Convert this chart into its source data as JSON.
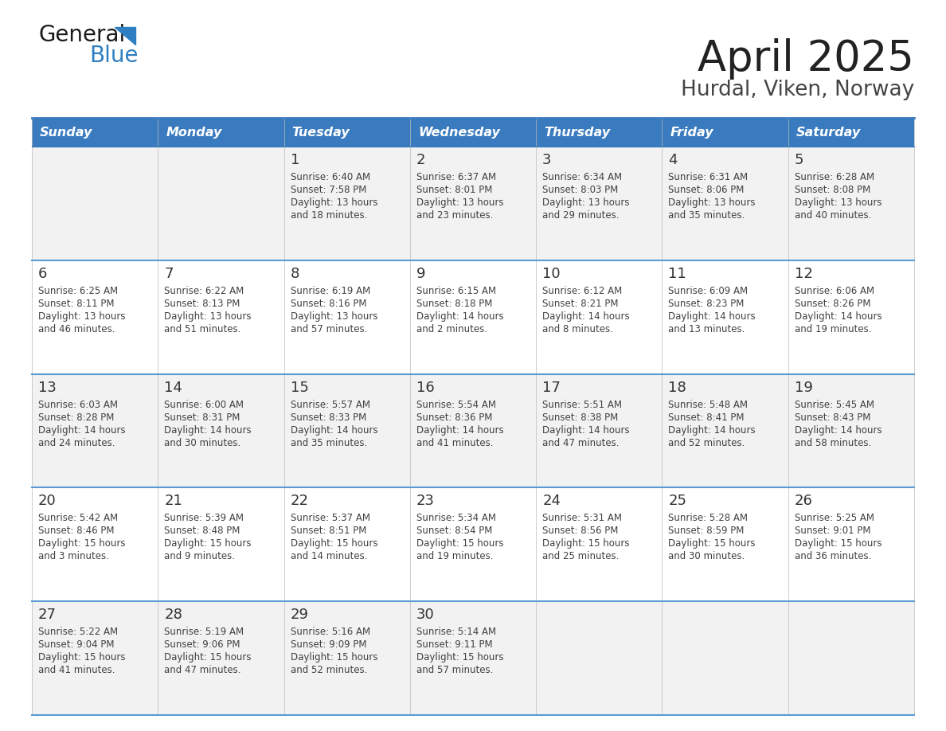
{
  "title": "April 2025",
  "subtitle": "Hurdal, Viken, Norway",
  "header_color": "#3a7bbf",
  "header_text_color": "#ffffff",
  "day_names": [
    "Sunday",
    "Monday",
    "Tuesday",
    "Wednesday",
    "Thursday",
    "Friday",
    "Saturday"
  ],
  "row_even_color": "#f2f2f2",
  "row_odd_color": "#ffffff",
  "border_color": "#3a7bbf",
  "separator_color": "#5b9bd5",
  "text_color": "#404040",
  "day_number_color": "#333333",
  "logo_color1": "#1a1a1a",
  "logo_color2": "#2e7fc1",
  "weeks": [
    [
      {
        "day": null,
        "sunrise": null,
        "sunset": null,
        "daylight": null
      },
      {
        "day": null,
        "sunrise": null,
        "sunset": null,
        "daylight": null
      },
      {
        "day": 1,
        "sunrise": "6:40 AM",
        "sunset": "7:58 PM",
        "daylight": "13 hours\nand 18 minutes."
      },
      {
        "day": 2,
        "sunrise": "6:37 AM",
        "sunset": "8:01 PM",
        "daylight": "13 hours\nand 23 minutes."
      },
      {
        "day": 3,
        "sunrise": "6:34 AM",
        "sunset": "8:03 PM",
        "daylight": "13 hours\nand 29 minutes."
      },
      {
        "day": 4,
        "sunrise": "6:31 AM",
        "sunset": "8:06 PM",
        "daylight": "13 hours\nand 35 minutes."
      },
      {
        "day": 5,
        "sunrise": "6:28 AM",
        "sunset": "8:08 PM",
        "daylight": "13 hours\nand 40 minutes."
      }
    ],
    [
      {
        "day": 6,
        "sunrise": "6:25 AM",
        "sunset": "8:11 PM",
        "daylight": "13 hours\nand 46 minutes."
      },
      {
        "day": 7,
        "sunrise": "6:22 AM",
        "sunset": "8:13 PM",
        "daylight": "13 hours\nand 51 minutes."
      },
      {
        "day": 8,
        "sunrise": "6:19 AM",
        "sunset": "8:16 PM",
        "daylight": "13 hours\nand 57 minutes."
      },
      {
        "day": 9,
        "sunrise": "6:15 AM",
        "sunset": "8:18 PM",
        "daylight": "14 hours\nand 2 minutes."
      },
      {
        "day": 10,
        "sunrise": "6:12 AM",
        "sunset": "8:21 PM",
        "daylight": "14 hours\nand 8 minutes."
      },
      {
        "day": 11,
        "sunrise": "6:09 AM",
        "sunset": "8:23 PM",
        "daylight": "14 hours\nand 13 minutes."
      },
      {
        "day": 12,
        "sunrise": "6:06 AM",
        "sunset": "8:26 PM",
        "daylight": "14 hours\nand 19 minutes."
      }
    ],
    [
      {
        "day": 13,
        "sunrise": "6:03 AM",
        "sunset": "8:28 PM",
        "daylight": "14 hours\nand 24 minutes."
      },
      {
        "day": 14,
        "sunrise": "6:00 AM",
        "sunset": "8:31 PM",
        "daylight": "14 hours\nand 30 minutes."
      },
      {
        "day": 15,
        "sunrise": "5:57 AM",
        "sunset": "8:33 PM",
        "daylight": "14 hours\nand 35 minutes."
      },
      {
        "day": 16,
        "sunrise": "5:54 AM",
        "sunset": "8:36 PM",
        "daylight": "14 hours\nand 41 minutes."
      },
      {
        "day": 17,
        "sunrise": "5:51 AM",
        "sunset": "8:38 PM",
        "daylight": "14 hours\nand 47 minutes."
      },
      {
        "day": 18,
        "sunrise": "5:48 AM",
        "sunset": "8:41 PM",
        "daylight": "14 hours\nand 52 minutes."
      },
      {
        "day": 19,
        "sunrise": "5:45 AM",
        "sunset": "8:43 PM",
        "daylight": "14 hours\nand 58 minutes."
      }
    ],
    [
      {
        "day": 20,
        "sunrise": "5:42 AM",
        "sunset": "8:46 PM",
        "daylight": "15 hours\nand 3 minutes."
      },
      {
        "day": 21,
        "sunrise": "5:39 AM",
        "sunset": "8:48 PM",
        "daylight": "15 hours\nand 9 minutes."
      },
      {
        "day": 22,
        "sunrise": "5:37 AM",
        "sunset": "8:51 PM",
        "daylight": "15 hours\nand 14 minutes."
      },
      {
        "day": 23,
        "sunrise": "5:34 AM",
        "sunset": "8:54 PM",
        "daylight": "15 hours\nand 19 minutes."
      },
      {
        "day": 24,
        "sunrise": "5:31 AM",
        "sunset": "8:56 PM",
        "daylight": "15 hours\nand 25 minutes."
      },
      {
        "day": 25,
        "sunrise": "5:28 AM",
        "sunset": "8:59 PM",
        "daylight": "15 hours\nand 30 minutes."
      },
      {
        "day": 26,
        "sunrise": "5:25 AM",
        "sunset": "9:01 PM",
        "daylight": "15 hours\nand 36 minutes."
      }
    ],
    [
      {
        "day": 27,
        "sunrise": "5:22 AM",
        "sunset": "9:04 PM",
        "daylight": "15 hours\nand 41 minutes."
      },
      {
        "day": 28,
        "sunrise": "5:19 AM",
        "sunset": "9:06 PM",
        "daylight": "15 hours\nand 47 minutes."
      },
      {
        "day": 29,
        "sunrise": "5:16 AM",
        "sunset": "9:09 PM",
        "daylight": "15 hours\nand 52 minutes."
      },
      {
        "day": 30,
        "sunrise": "5:14 AM",
        "sunset": "9:11 PM",
        "daylight": "15 hours\nand 57 minutes."
      },
      {
        "day": null,
        "sunrise": null,
        "sunset": null,
        "daylight": null
      },
      {
        "day": null,
        "sunrise": null,
        "sunset": null,
        "daylight": null
      },
      {
        "day": null,
        "sunrise": null,
        "sunset": null,
        "daylight": null
      }
    ]
  ]
}
